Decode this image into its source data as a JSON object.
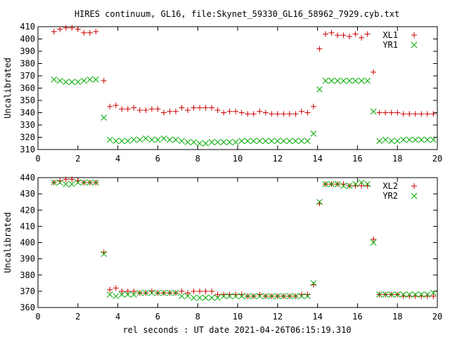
{
  "title": "HIRES continuum, GL16, file:Skynet_59330_GL16_58962_7929.cyb.txt",
  "xlabel": "rel seconds : UT date 2021-04-26T06:15:19.310",
  "colors": {
    "plus": "#cc0000",
    "cross": "#00aa00"
  },
  "chart_data": [
    {
      "type": "scatter",
      "title": "",
      "xlabel": "",
      "ylabel": "Uncalibrated",
      "xlim": [
        0,
        20
      ],
      "ylim": [
        310,
        410
      ],
      "xticks": [
        0,
        2,
        4,
        6,
        8,
        10,
        12,
        14,
        16,
        18,
        20
      ],
      "yticks": [
        310,
        320,
        330,
        340,
        350,
        360,
        370,
        380,
        390,
        400,
        410
      ],
      "legend_position": "top-right",
      "series": [
        {
          "name": "XL1",
          "marker": "plus",
          "x": [
            0.8,
            1.1,
            1.4,
            1.7,
            2.0,
            2.3,
            2.6,
            2.9,
            3.3,
            3.6,
            3.9,
            4.2,
            4.5,
            4.8,
            5.1,
            5.4,
            5.7,
            6.0,
            6.3,
            6.6,
            6.9,
            7.2,
            7.5,
            7.8,
            8.1,
            8.4,
            8.7,
            9.0,
            9.3,
            9.6,
            9.9,
            10.2,
            10.5,
            10.8,
            11.1,
            11.4,
            11.7,
            12.0,
            12.3,
            12.6,
            12.9,
            13.2,
            13.5,
            13.8,
            14.1,
            14.4,
            14.7,
            15.0,
            15.3,
            15.6,
            15.9,
            16.2,
            16.5,
            16.8,
            17.1,
            17.4,
            17.7,
            18.0,
            18.3,
            18.6,
            18.9,
            19.2,
            19.5,
            19.8
          ],
          "y": [
            406,
            408,
            409,
            409,
            408,
            405,
            405,
            406,
            366,
            345,
            346,
            343,
            343,
            344,
            342,
            342,
            343,
            343,
            340,
            341,
            341,
            344,
            342,
            344,
            344,
            344,
            344,
            342,
            340,
            341,
            341,
            340,
            339,
            339,
            341,
            340,
            339,
            339,
            339,
            339,
            339,
            341,
            340,
            345,
            392,
            404,
            405,
            403,
            403,
            402,
            404,
            401,
            404,
            373,
            340,
            340,
            340,
            340,
            339,
            339,
            339,
            339,
            339,
            339
          ]
        },
        {
          "name": "YR1",
          "marker": "cross",
          "x": [
            0.8,
            1.1,
            1.4,
            1.7,
            2.0,
            2.3,
            2.6,
            2.9,
            3.3,
            3.6,
            3.9,
            4.2,
            4.5,
            4.8,
            5.1,
            5.4,
            5.7,
            6.0,
            6.3,
            6.6,
            6.9,
            7.2,
            7.5,
            7.8,
            8.1,
            8.4,
            8.7,
            9.0,
            9.3,
            9.6,
            9.9,
            10.2,
            10.5,
            10.8,
            11.1,
            11.4,
            11.7,
            12.0,
            12.3,
            12.6,
            12.9,
            13.2,
            13.5,
            13.8,
            14.1,
            14.4,
            14.7,
            15.0,
            15.3,
            15.6,
            15.9,
            16.2,
            16.5,
            16.8,
            17.1,
            17.4,
            17.7,
            18.0,
            18.3,
            18.6,
            18.9,
            19.2,
            19.5,
            19.8
          ],
          "y": [
            367,
            366,
            365,
            365,
            365,
            366,
            367,
            367,
            336,
            318,
            317,
            317,
            317,
            318,
            318,
            319,
            318,
            318,
            319,
            318,
            318,
            317,
            316,
            316,
            315,
            315,
            316,
            316,
            316,
            316,
            316,
            317,
            317,
            317,
            317,
            317,
            317,
            317,
            317,
            317,
            317,
            317,
            317,
            323,
            359,
            366,
            366,
            366,
            366,
            366,
            366,
            366,
            366,
            341,
            317,
            318,
            317,
            317,
            318,
            318,
            318,
            318,
            318,
            318
          ]
        }
      ]
    },
    {
      "type": "scatter",
      "title": "",
      "xlabel": "rel seconds : UT date 2021-04-26T06:15:19.310",
      "ylabel": "Uncalibrated",
      "xlim": [
        0,
        20
      ],
      "ylim": [
        360,
        440
      ],
      "xticks": [
        0,
        2,
        4,
        6,
        8,
        10,
        12,
        14,
        16,
        18,
        20
      ],
      "yticks": [
        360,
        370,
        380,
        390,
        400,
        410,
        420,
        430,
        440
      ],
      "legend_position": "top-right",
      "series": [
        {
          "name": "XL2",
          "marker": "plus",
          "x": [
            0.8,
            1.1,
            1.4,
            1.7,
            2.0,
            2.3,
            2.6,
            2.9,
            3.3,
            3.6,
            3.9,
            4.2,
            4.5,
            4.8,
            5.1,
            5.4,
            5.7,
            6.0,
            6.3,
            6.6,
            6.9,
            7.2,
            7.5,
            7.8,
            8.1,
            8.4,
            8.7,
            9.0,
            9.3,
            9.6,
            9.9,
            10.2,
            10.5,
            10.8,
            11.1,
            11.4,
            11.7,
            12.0,
            12.3,
            12.6,
            12.9,
            13.2,
            13.5,
            13.8,
            14.1,
            14.4,
            14.7,
            15.0,
            15.3,
            15.6,
            15.9,
            16.2,
            16.5,
            16.8,
            17.1,
            17.4,
            17.7,
            18.0,
            18.3,
            18.6,
            18.9,
            19.2,
            19.5,
            19.8
          ],
          "y": [
            437,
            438,
            439,
            439,
            438,
            437,
            437,
            437,
            394,
            371,
            372,
            370,
            370,
            370,
            369,
            369,
            370,
            369,
            369,
            369,
            369,
            370,
            369,
            370,
            370,
            370,
            370,
            368,
            368,
            368,
            368,
            368,
            367,
            367,
            368,
            367,
            367,
            367,
            367,
            367,
            367,
            368,
            368,
            374,
            424,
            436,
            436,
            436,
            436,
            435,
            435,
            435,
            435,
            402,
            368,
            368,
            368,
            368,
            367,
            367,
            367,
            367,
            367,
            367
          ]
        },
        {
          "name": "YR2",
          "marker": "cross",
          "x": [
            0.8,
            1.1,
            1.4,
            1.7,
            2.0,
            2.3,
            2.6,
            2.9,
            3.3,
            3.6,
            3.9,
            4.2,
            4.5,
            4.8,
            5.1,
            5.4,
            5.7,
            6.0,
            6.3,
            6.6,
            6.9,
            7.2,
            7.5,
            7.8,
            8.1,
            8.4,
            8.7,
            9.0,
            9.3,
            9.6,
            9.9,
            10.2,
            10.5,
            10.8,
            11.1,
            11.4,
            11.7,
            12.0,
            12.3,
            12.6,
            12.9,
            13.2,
            13.5,
            13.8,
            14.1,
            14.4,
            14.7,
            15.0,
            15.3,
            15.6,
            15.9,
            16.2,
            16.5,
            16.8,
            17.1,
            17.4,
            17.7,
            18.0,
            18.3,
            18.6,
            18.9,
            19.2,
            19.5,
            19.8
          ],
          "y": [
            437,
            437,
            436,
            436,
            437,
            437,
            437,
            437,
            393,
            368,
            367,
            368,
            368,
            368,
            369,
            369,
            369,
            369,
            369,
            369,
            369,
            367,
            367,
            366,
            366,
            366,
            366,
            366,
            367,
            367,
            367,
            367,
            367,
            367,
            367,
            367,
            367,
            367,
            367,
            367,
            367,
            367,
            367,
            375,
            425,
            436,
            436,
            436,
            435,
            435,
            436,
            437,
            436,
            400,
            368,
            368,
            368,
            368,
            368,
            368,
            368,
            368,
            368,
            369
          ]
        }
      ]
    }
  ]
}
